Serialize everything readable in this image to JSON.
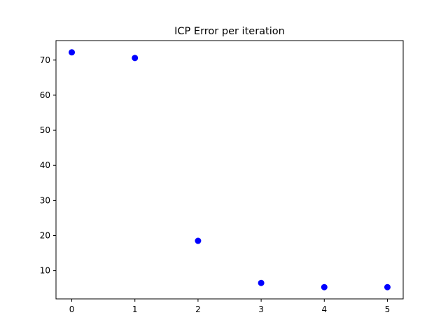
{
  "chart_data": {
    "type": "scatter",
    "title": "ICP Error per iteration",
    "xlabel": "",
    "ylabel": "",
    "x": [
      0,
      1,
      2,
      3,
      4,
      5
    ],
    "y": [
      72.2,
      70.6,
      18.5,
      6.5,
      5.3,
      5.3
    ],
    "xlim": [
      -0.25,
      5.25
    ],
    "ylim": [
      1.95,
      75.55
    ],
    "xticks": [
      0,
      1,
      2,
      3,
      4,
      5
    ],
    "yticks": [
      10,
      20,
      30,
      40,
      50,
      60,
      70
    ],
    "marker_color": "#0000ff",
    "grid": false,
    "legend": "none"
  }
}
